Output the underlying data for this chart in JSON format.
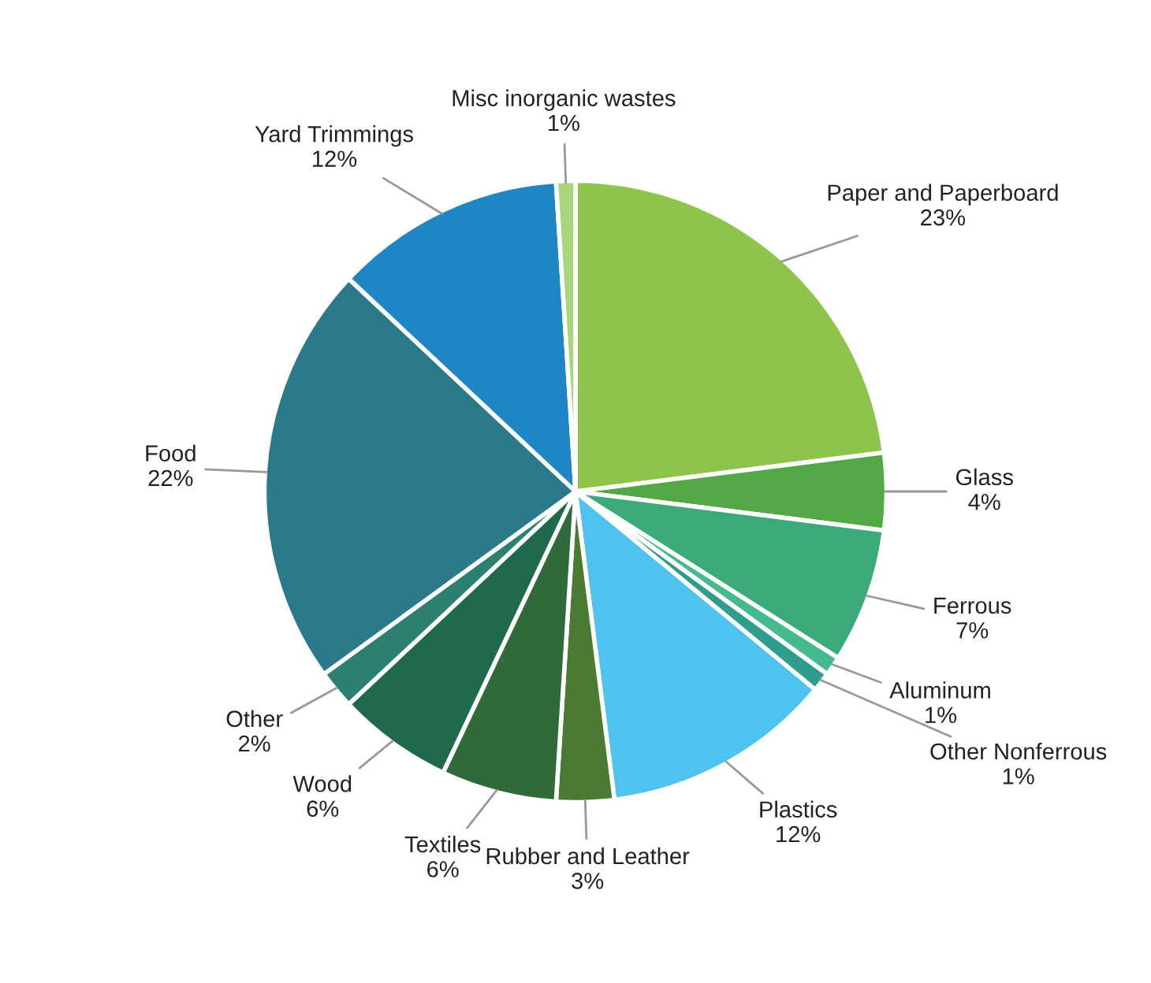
{
  "chart_data": {
    "type": "pie",
    "categories": [
      "Paper and Paperboard",
      "Glass",
      "Ferrous",
      "Aluminum",
      "Other Nonferrous",
      "Plastics",
      "Rubber and Leather",
      "Textiles",
      "Wood",
      "Other",
      "Food",
      "Yard Trimmings",
      "Misc inorganic wastes"
    ],
    "values": [
      23,
      4,
      7,
      1,
      1,
      12,
      3,
      6,
      6,
      2,
      22,
      12,
      1
    ],
    "colors": [
      "#8dc54b",
      "#52a844",
      "#3aab78",
      "#45bb8d",
      "#2f9d8c",
      "#4fc3f0",
      "#4b7a35",
      "#2f6a3a",
      "#1e6a4b",
      "#2b8070",
      "#2b7a8c",
      "#1f86c6",
      "#a8d67c"
    ],
    "value_labels": [
      "23%",
      "4%",
      "7%",
      "1%",
      "1%",
      "12%",
      "3%",
      "6%",
      "6%",
      "2%",
      "22%",
      "12%",
      "1%"
    ],
    "legend": false
  }
}
